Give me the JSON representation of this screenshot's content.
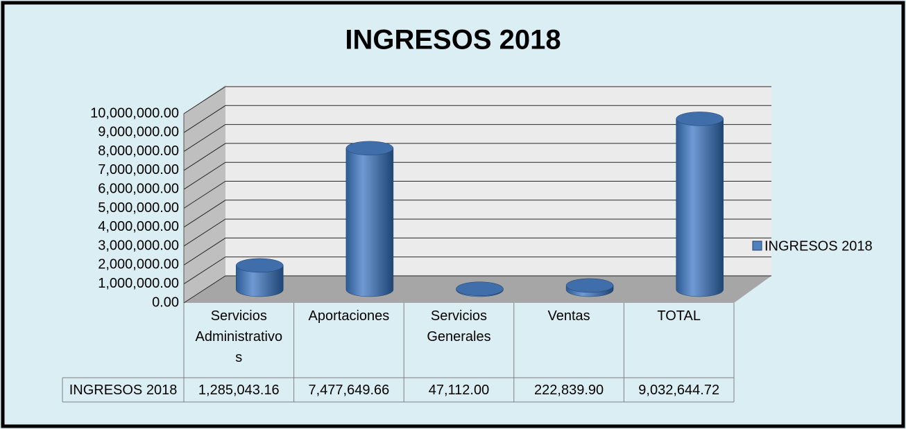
{
  "chart_data": {
    "type": "bar3d",
    "title": "INGRESOS 2018",
    "categories": [
      "Servicios Administrativos",
      "Aportaciones",
      "Servicios Generales",
      "Ventas",
      "TOTAL"
    ],
    "series": [
      {
        "name": "INGRESOS 2018",
        "color": "#4f81bd",
        "values": [
          1285043.16,
          7477649.66,
          47112.0,
          222839.9,
          9032644.72
        ],
        "value_labels": [
          "1,285,043.16",
          "7,477,649.66",
          "47,112.00",
          "222,839.90",
          "9,032,644.72"
        ]
      }
    ],
    "ylim": [
      0,
      10000000
    ],
    "yticks": [
      {
        "value": 0,
        "label": "0.00"
      },
      {
        "value": 1000000,
        "label": "1,000,000.00"
      },
      {
        "value": 2000000,
        "label": "2,000,000.00"
      },
      {
        "value": 3000000,
        "label": "3,000,000.00"
      },
      {
        "value": 4000000,
        "label": "4,000,000.00"
      },
      {
        "value": 5000000,
        "label": "5,000,000.00"
      },
      {
        "value": 6000000,
        "label": "6,000,000.00"
      },
      {
        "value": 7000000,
        "label": "7,000,000.00"
      },
      {
        "value": 8000000,
        "label": "8,000,000.00"
      },
      {
        "value": 9000000,
        "label": "9,000,000.00"
      },
      {
        "value": 10000000,
        "label": "10,000,000.00"
      }
    ],
    "grid": true,
    "legend": "right",
    "data_table": true
  }
}
